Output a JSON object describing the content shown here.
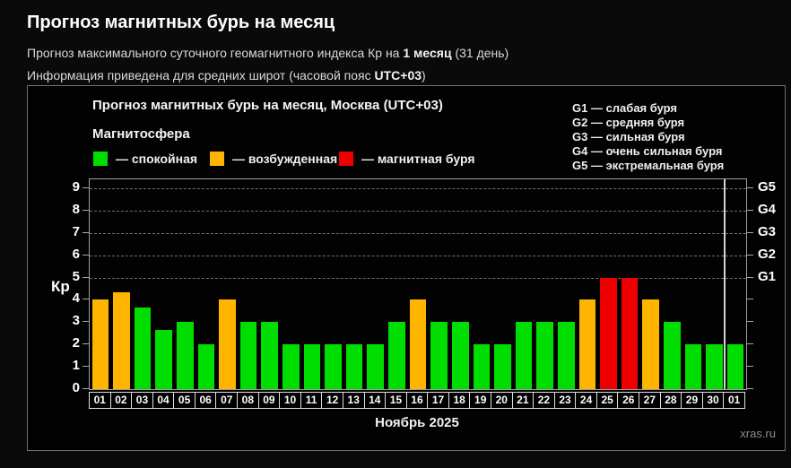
{
  "page": {
    "title": "Прогноз магнитных бурь на месяц",
    "subtitle1": {
      "prefix": "Прогноз максимального суточного геомагнитного индекса Кр на ",
      "bold": "1 месяц",
      "suffix": " (31 день)"
    },
    "subtitle2": {
      "prefix": "Информация приведена для средних широт (часовой пояс ",
      "bold": "UTC+03",
      "suffix": ")"
    },
    "watermark": "xras.ru"
  },
  "panel": {
    "title": "Прогноз магнитных бурь на месяц, Москва (UTC+03)",
    "legend_title": "Магнитосфера",
    "legend": [
      {
        "key": "quiet",
        "label": "— спокойная",
        "color": "#00dd00"
      },
      {
        "key": "excited",
        "label": "— возбужденная",
        "color": "#ffb400"
      },
      {
        "key": "storm",
        "label": "— магнитная буря",
        "color": "#ee0000"
      }
    ],
    "g_scale": [
      "G1 — слабая буря",
      "G2 — средняя буря",
      "G3 — сильная буря",
      "G4 — очень сильная буря",
      "G5 — экстремальная буря"
    ]
  },
  "chart_data": {
    "type": "bar",
    "title": "Прогноз магнитных бурь на месяц, Москва (UTC+03)",
    "xlabel": "Ноябрь 2025",
    "ylabel": "Кр",
    "ylim": [
      0,
      9
    ],
    "yticks": [
      0,
      1,
      2,
      3,
      4,
      5,
      6,
      7,
      8,
      9
    ],
    "gridlines_at": [
      5,
      6,
      7,
      8,
      9
    ],
    "grid": "dashed horizontal at Kp 5-9 only",
    "legend_position": "top-left inside panel",
    "right_axis": [
      {
        "kp": 5,
        "label": "G1"
      },
      {
        "kp": 6,
        "label": "G2"
      },
      {
        "kp": 7,
        "label": "G3"
      },
      {
        "kp": 8,
        "label": "G4"
      },
      {
        "kp": 9,
        "label": "G5"
      }
    ],
    "categories": [
      "01",
      "02",
      "03",
      "04",
      "05",
      "06",
      "07",
      "08",
      "09",
      "10",
      "11",
      "12",
      "13",
      "14",
      "15",
      "16",
      "17",
      "18",
      "19",
      "20",
      "21",
      "22",
      "23",
      "24",
      "25",
      "26",
      "27",
      "28",
      "29",
      "30",
      "01"
    ],
    "values": [
      4,
      4.33,
      3.67,
      2.67,
      3,
      2,
      4,
      3,
      3,
      2,
      2,
      2,
      2,
      2,
      3,
      4,
      3,
      3,
      2,
      2,
      3,
      3,
      3,
      4,
      5,
      5,
      4,
      3,
      2,
      2,
      2
    ],
    "statuses": [
      "excited",
      "excited",
      "quiet",
      "quiet",
      "quiet",
      "quiet",
      "excited",
      "quiet",
      "quiet",
      "quiet",
      "quiet",
      "quiet",
      "quiet",
      "quiet",
      "quiet",
      "excited",
      "quiet",
      "quiet",
      "quiet",
      "quiet",
      "quiet",
      "quiet",
      "quiet",
      "excited",
      "storm",
      "storm",
      "excited",
      "quiet",
      "quiet",
      "quiet",
      "quiet"
    ],
    "status_colors": {
      "quiet": "#00dd00",
      "excited": "#ffb400",
      "storm": "#ee0000"
    },
    "month_separator_after_index": 29
  }
}
